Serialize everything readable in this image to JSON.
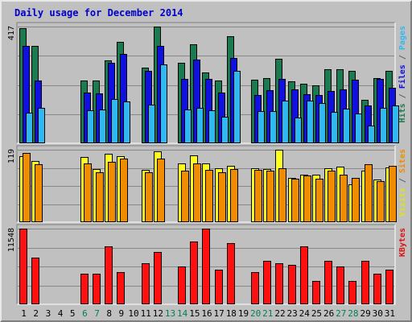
{
  "chart_data": {
    "type": "bar",
    "title": "Daily usage for December 2014",
    "categories": [
      "1",
      "2",
      "3",
      "4",
      "5",
      "6",
      "7",
      "8",
      "9",
      "10",
      "11",
      "12",
      "13",
      "14",
      "15",
      "16",
      "17",
      "18",
      "19",
      "20",
      "21",
      "22",
      "23",
      "24",
      "25",
      "26",
      "27",
      "28",
      "29",
      "30",
      "31"
    ],
    "weekend_days": [
      "6",
      "7",
      "13",
      "14",
      "20",
      "21",
      "27",
      "28"
    ],
    "panels": [
      {
        "name": "hits-files-pages",
        "max_label": "417",
        "ymax": 417,
        "right_labels": [
          {
            "text": "Hits",
            "color": "#1a7a50"
          },
          {
            "text": " / ",
            "color": "#606060"
          },
          {
            "text": "Files",
            "color": "#1010e0"
          },
          {
            "text": " / ",
            "color": "#606060"
          },
          {
            "text": "Pages",
            "color": "#30b8f0"
          }
        ],
        "series": [
          {
            "name": "Hits",
            "color": "#1a7a50",
            "values": [
              412,
              347,
              0,
              0,
              0,
              225,
              225,
              297,
              362,
              0,
              271,
              417,
              0,
              288,
              355,
              254,
              225,
              382,
              0,
              228,
              234,
              303,
              222,
              212,
              208,
              264,
              265,
              259,
              156,
              234,
              259
            ]
          },
          {
            "name": "Files",
            "color": "#1010e0",
            "values": [
              347,
              225,
              0,
              0,
              0,
              180,
              177,
              288,
              320,
              0,
              260,
              347,
              0,
              230,
              300,
              230,
              180,
              305,
              0,
              173,
              190,
              231,
              194,
              175,
              172,
              187,
              194,
              228,
              136,
              229,
              199
            ]
          },
          {
            "name": "Pages",
            "color": "#30b8f0",
            "values": [
              110,
              127,
              0,
              0,
              0,
              119,
              121,
              157,
              150,
              0,
              137,
              282,
              0,
              122,
              127,
              118,
              94,
              260,
              0,
              114,
              116,
              153,
              93,
              153,
              144,
              113,
              125,
              105,
              64,
              127,
              134
            ]
          }
        ]
      },
      {
        "name": "visits-sites",
        "max_label": "119",
        "ymax": 119,
        "right_labels": [
          {
            "text": "Visits",
            "color": "#e0e020"
          },
          {
            "text": " / ",
            "color": "#606060"
          },
          {
            "text": "Sites",
            "color": "#f08c00"
          }
        ],
        "series": [
          {
            "name": "Visits",
            "color": "#ffff20",
            "values": [
              109,
              101,
              0,
              0,
              0,
              107,
              87,
              112,
              108,
              0,
              86,
              116,
              0,
              96,
              110,
              96,
              88,
              92,
              0,
              89,
              87,
              119,
              73,
              78,
              78,
              89,
              91,
              62,
              84,
              70,
              90
            ]
          },
          {
            "name": "Sites",
            "color": "#f08c00",
            "values": [
              114,
              95,
              0,
              0,
              0,
              97,
              82,
              99,
              105,
              0,
              82,
              104,
              0,
              85,
              96,
              86,
              82,
              87,
              0,
              86,
              84,
              88,
              71,
              77,
              72,
              84,
              78,
              73,
              95,
              68,
              92
            ]
          }
        ]
      },
      {
        "name": "kbytes",
        "max_label": "11548",
        "ymax": 11548,
        "right_labels": [
          {
            "text": "KBytes",
            "color": "#e01010"
          }
        ],
        "series": [
          {
            "name": "KBytes",
            "color": "#ff1010",
            "values": [
              11548,
              7150,
              0,
              0,
              0,
              4675,
              4675,
              8800,
              4950,
              0,
              6325,
              7975,
              0,
              5775,
              9625,
              11548,
              5225,
              9350,
              0,
              4950,
              6600,
              6325,
              6050,
              8800,
              3575,
              6600,
              5775,
              3575,
              6600,
              4675,
              5225
            ]
          }
        ]
      }
    ]
  }
}
